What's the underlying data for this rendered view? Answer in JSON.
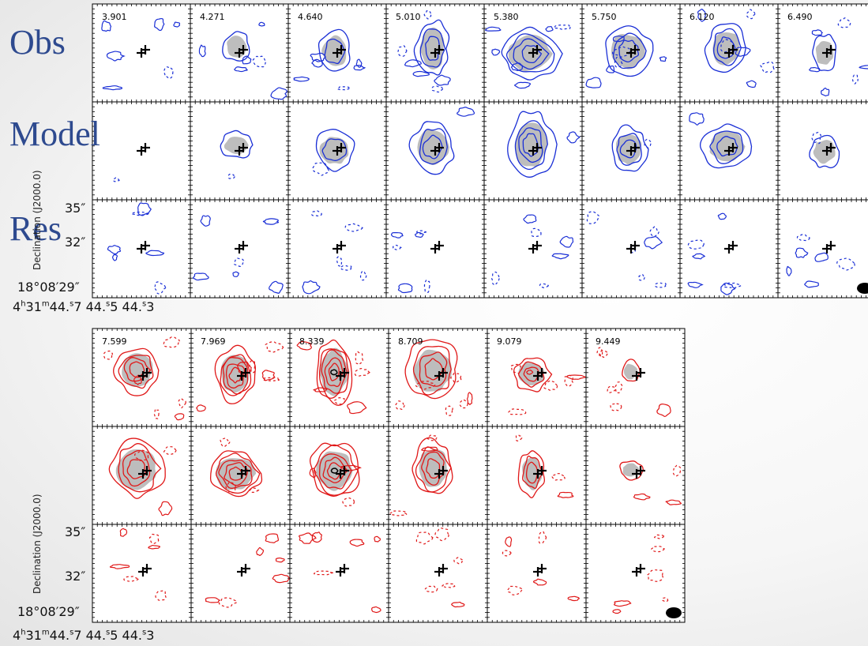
{
  "blocks": [
    {
      "color": "#1a2fd6",
      "row_labels": [
        "Obs",
        "Model",
        "Res"
      ],
      "velocities": [
        "3.901",
        "4.271",
        "4.640",
        "5.010",
        "5.380",
        "5.750",
        "6.120",
        "6.490"
      ],
      "dec_axis_label": "Declination (J2000.0)",
      "dec_ticks": [
        "35″",
        "32″",
        "18°08′29″"
      ],
      "ra_ticks": "4h31m44s7 44s5 44s3"
    },
    {
      "color": "#e01818",
      "row_labels": [],
      "velocities": [
        "7.599",
        "7.969",
        "8.339",
        "8.709",
        "9.079",
        "9.449"
      ],
      "dec_axis_label": "Declination (J2000.0)",
      "dec_ticks": [
        "35″",
        "32″",
        "18°08′29″"
      ],
      "ra_ticks": "4h31m44s7 44s5 44s3"
    }
  ],
  "ra_parts": {
    "h": "4",
    "m": "31",
    "s1": "44",
    "f1": "7",
    "s2": "44",
    "f2": "5",
    "s3": "44",
    "f3": "3"
  }
}
